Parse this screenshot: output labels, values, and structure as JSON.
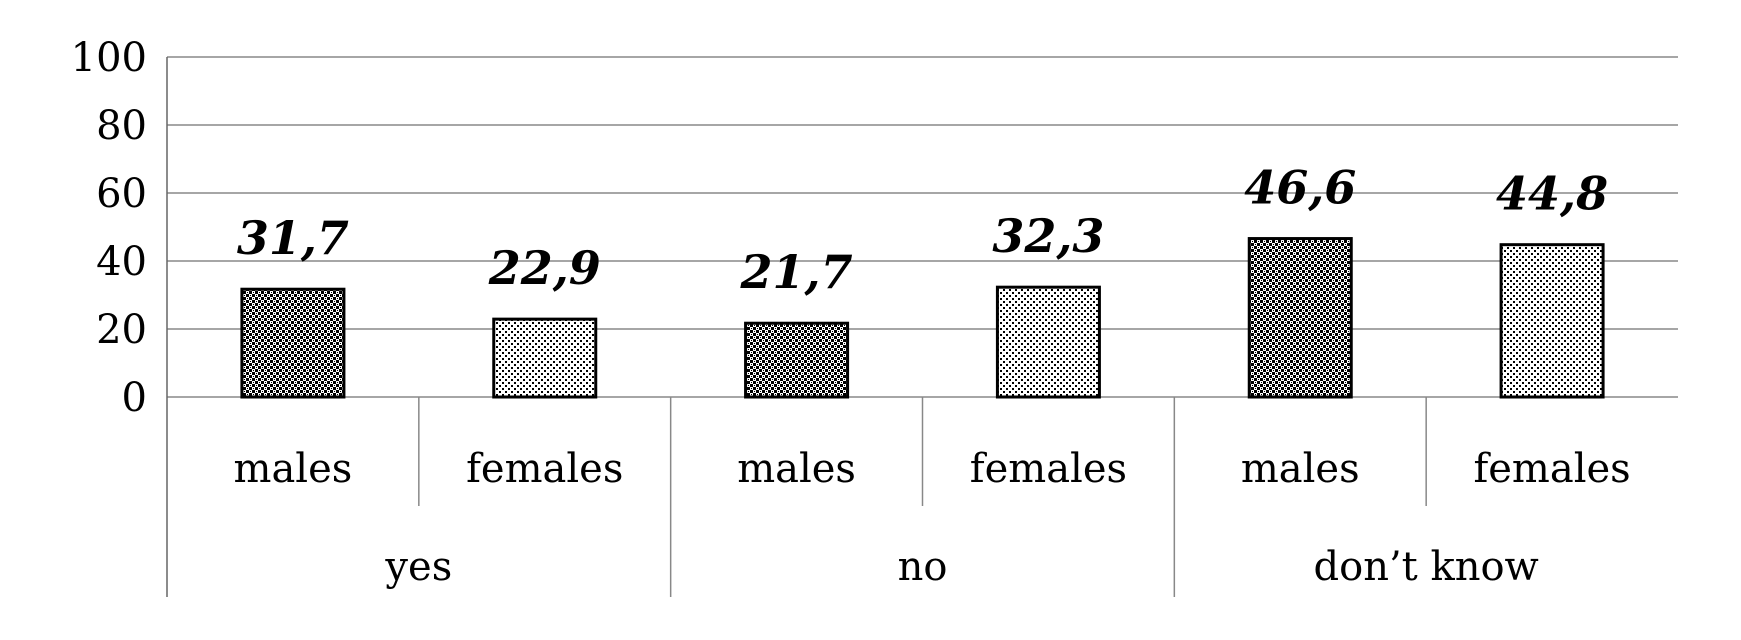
{
  "chart_data": {
    "type": "bar",
    "groups": [
      "yes",
      "no",
      "don’t know"
    ],
    "categories": [
      "males",
      "females",
      "males",
      "females",
      "males",
      "females"
    ],
    "values": [
      31.7,
      22.9,
      21.7,
      32.3,
      46.6,
      44.8
    ],
    "value_labels": [
      "31,7",
      "22,9",
      "21,7",
      "32,3",
      "46,6",
      "44,8"
    ],
    "ylim": [
      0,
      100
    ],
    "yticks": [
      "0",
      "20",
      "40",
      "60",
      "80",
      "100"
    ],
    "grid": true,
    "title": "",
    "xlabel": "",
    "ylabel": "",
    "bar_patterns": [
      "dense-dots-dark",
      "sparse-dots-light",
      "dense-dots-dark",
      "sparse-dots-light",
      "dense-dots-dark",
      "sparse-dots-light"
    ]
  }
}
